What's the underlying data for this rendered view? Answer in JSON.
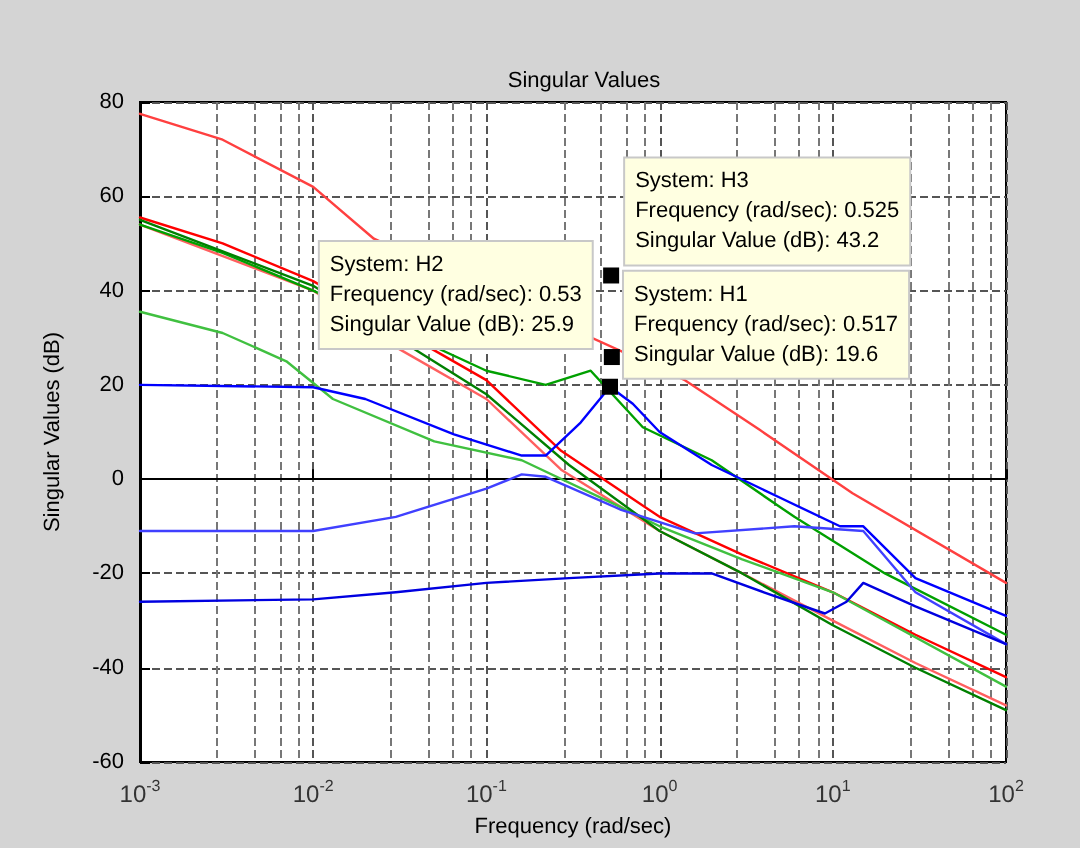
{
  "chart_data": {
    "type": "line",
    "title": "Singular Values",
    "xlabel": "Frequency (rad/sec)",
    "ylabel": "Singular Values (dB)",
    "log": "x",
    "grid": true,
    "marker": "none",
    "line_style": "solid",
    "xlim": [
      0.001,
      100
    ],
    "xticks": [
      {
        "value": 0.001,
        "label": "10$^{-3}$"
      },
      {
        "value": 0.01,
        "label": "10$^{-2}$"
      },
      {
        "value": 0.1,
        "label": "10$^{-1}$"
      },
      {
        "value": 1,
        "label": "10$^{0}$"
      },
      {
        "value": 10,
        "label": "10$^{1}$"
      },
      {
        "value": 100,
        "label": "10$^{2}$"
      }
    ],
    "ylim": [
      -60,
      80
    ],
    "yticks": [
      -60,
      -40,
      -20,
      0,
      20,
      40,
      60,
      80
    ],
    "series": [
      {
        "color": "#ff4040",
        "x": [
          0.001,
          0.003,
          0.01,
          0.0224,
          1.4,
          3.8,
          13,
          100
        ],
        "values": [
          77.5,
          72,
          62,
          51,
          21,
          10.4,
          -3,
          -22
        ]
      },
      {
        "color": "#ff0000",
        "x": [
          0.001,
          0.003,
          0.01,
          0.1,
          0.27,
          1,
          3,
          10,
          30,
          100
        ],
        "values": [
          55.5,
          50,
          42,
          21,
          6,
          -8,
          -16,
          -24,
          -33,
          -42
        ]
      },
      {
        "color": "#ff6060",
        "x": [
          0.001,
          0.01,
          0.03,
          0.1,
          0.27,
          1,
          3,
          10,
          30,
          100
        ],
        "values": [
          54,
          40,
          28,
          17,
          2,
          -11,
          -20,
          -30,
          -39,
          -48
        ]
      },
      {
        "color": "#00a000",
        "x": [
          0.001,
          0.003,
          0.01,
          0.1,
          0.22,
          0.4,
          0.8,
          2,
          6,
          20,
          100
        ],
        "values": [
          54,
          48,
          40,
          23,
          20,
          23,
          11,
          4,
          -8,
          -20,
          -33
        ]
      },
      {
        "color": "#40c040",
        "x": [
          0.001,
          0.003,
          0.007,
          0.013,
          0.05,
          0.16,
          0.6,
          1,
          3,
          10,
          100
        ],
        "values": [
          35.5,
          31,
          25,
          17,
          8,
          4,
          -6,
          -10,
          -17,
          -24,
          -44
        ]
      },
      {
        "color": "#008000",
        "x": [
          0.001,
          0.01,
          0.1,
          0.3,
          1,
          3,
          10,
          30,
          100
        ],
        "values": [
          55,
          41,
          18,
          3,
          -11,
          -20,
          -31,
          -40,
          -49
        ]
      },
      {
        "color": "#0000ff",
        "x": [
          0.001,
          0.01,
          0.02,
          0.065,
          0.16,
          0.22,
          0.35,
          0.517,
          0.7,
          1,
          2,
          5,
          11,
          15,
          30,
          100
        ],
        "values": [
          20,
          19.5,
          17,
          9.5,
          5,
          5,
          12,
          19.6,
          16,
          10,
          3,
          -4,
          -10,
          -10,
          -21,
          -29
        ]
      },
      {
        "color": "#4040ff",
        "x": [
          0.001,
          0.01,
          0.03,
          0.1,
          0.16,
          0.22,
          0.6,
          1.6,
          6,
          15,
          30,
          100
        ],
        "values": [
          -11,
          -11,
          -8,
          -2,
          1,
          0.5,
          -6.5,
          -11.5,
          -10,
          -11,
          -24,
          -35
        ]
      },
      {
        "color": "#0000e0",
        "x": [
          0.001,
          0.01,
          0.03,
          0.1,
          0.3,
          1,
          2,
          4,
          9,
          12,
          15,
          30,
          100
        ],
        "values": [
          -26,
          -25.5,
          -24,
          -22,
          -21,
          -20,
          -20,
          -24,
          -28.5,
          -26,
          -22,
          -27,
          -35
        ]
      }
    ],
    "annotations": [
      {
        "text": "System: H2\nFrequency (rad/sec): 0.53\nSingular Value (dB): 25.9",
        "x": 0.53,
        "y": 25.9
      },
      {
        "text": "System: H3\nFrequency (rad/sec): 0.525\nSingular Value (dB): 43.2",
        "x": 0.525,
        "y": 43.2
      },
      {
        "text": "System: H1\nFrequency (rad/sec): 0.517\nSingular Value (dB): 19.6",
        "x": 0.517,
        "y": 19.6
      }
    ]
  }
}
